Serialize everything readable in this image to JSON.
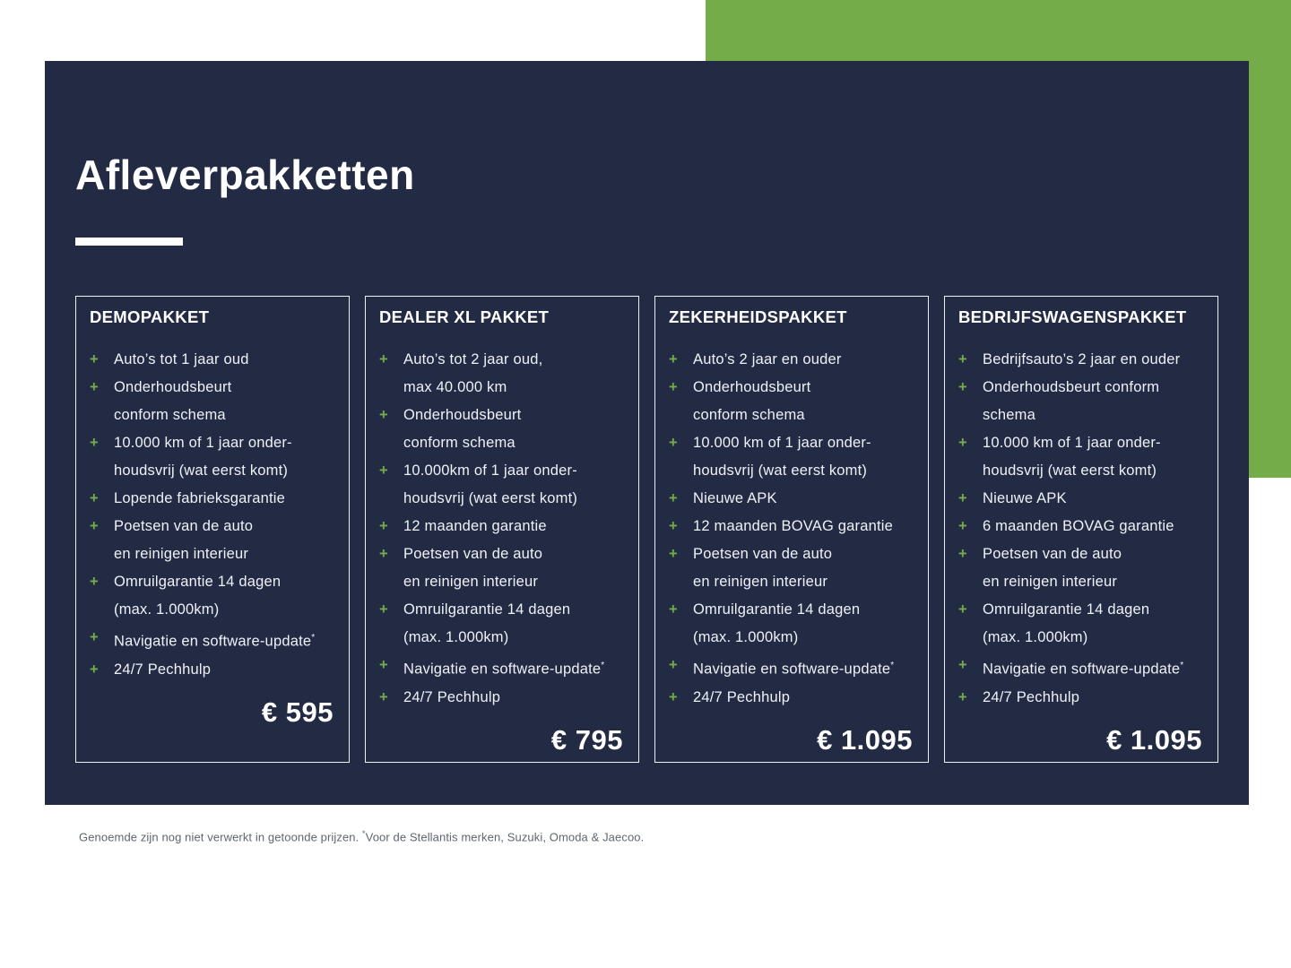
{
  "page": {
    "title": "Afleverpakketten",
    "bullet_glyph": "+",
    "footer": {
      "pre": "Genoemde zijn nog niet verwerkt in getoonde prijzen. ",
      "sup": "*",
      "post": "Voor de Stellantis merken, Suzuki, Omoda & Jaecoo."
    }
  },
  "colors": {
    "panel_navy": "#232A44",
    "accent_green": "#74AC4A",
    "card_border": "#EDF1F6",
    "list_text": "#EEF2F7",
    "footnote_text": "#5E6670"
  },
  "packages": [
    {
      "title": "DEMOPAKKET",
      "price": "€ 595",
      "items": [
        {
          "lines": [
            "Auto’s tot 1 jaar oud"
          ]
        },
        {
          "lines": [
            "Onderhoudsbeurt",
            "conform schema"
          ]
        },
        {
          "lines": [
            "10.000 km of 1 jaar onder-",
            "houdsvrij (wat eerst komt)"
          ]
        },
        {
          "lines": [
            "Lopende fabrieksgarantie"
          ]
        },
        {
          "lines": [
            "Poetsen van de auto",
            "en reinigen interieur"
          ]
        },
        {
          "lines": [
            "Omruilgarantie 14 dagen",
            "(max. 1.000km)"
          ]
        },
        {
          "lines": [
            "Navigatie en software-update"
          ],
          "sup": "*"
        },
        {
          "lines": [
            "24/7 Pechhulp"
          ]
        }
      ]
    },
    {
      "title": "DEALER XL PAKKET",
      "price": "€ 795",
      "items": [
        {
          "lines": [
            "Auto’s tot 2 jaar oud,",
            "max 40.000 km"
          ]
        },
        {
          "lines": [
            "Onderhoudsbeurt",
            "conform schema"
          ]
        },
        {
          "lines": [
            "10.000km of 1 jaar onder-",
            "houdsvrij (wat eerst komt)"
          ]
        },
        {
          "lines": [
            "12 maanden garantie"
          ]
        },
        {
          "lines": [
            "Poetsen van de auto",
            "en reinigen interieur"
          ]
        },
        {
          "lines": [
            "Omruilgarantie 14 dagen",
            "(max. 1.000km)"
          ]
        },
        {
          "lines": [
            "Navigatie en software-update"
          ],
          "sup": "*"
        },
        {
          "lines": [
            "24/7 Pechhulp"
          ]
        }
      ]
    },
    {
      "title": "ZEKERHEIDSPAKKET",
      "price": "€ 1.095",
      "items": [
        {
          "lines": [
            "Auto’s 2 jaar en ouder"
          ]
        },
        {
          "lines": [
            "Onderhoudsbeurt",
            "conform schema"
          ]
        },
        {
          "lines": [
            "10.000 km of 1 jaar onder-",
            "houdsvrij (wat eerst komt)"
          ]
        },
        {
          "lines": [
            "Nieuwe APK"
          ]
        },
        {
          "lines": [
            "12 maanden BOVAG garantie"
          ]
        },
        {
          "lines": [
            "Poetsen van de auto",
            "en reinigen interieur"
          ]
        },
        {
          "lines": [
            "Omruilgarantie 14 dagen",
            "(max. 1.000km)"
          ]
        },
        {
          "lines": [
            "Navigatie en software-update"
          ],
          "sup": "*"
        },
        {
          "lines": [
            "24/7 Pechhulp"
          ]
        }
      ]
    },
    {
      "title": "BEDRIJFSWAGENSPAKKET",
      "price": "€ 1.095",
      "items": [
        {
          "lines": [
            "Bedrijfsauto’s 2 jaar en ouder"
          ]
        },
        {
          "lines": [
            "Onderhoudsbeurt conform",
            "schema"
          ]
        },
        {
          "lines": [
            "10.000 km of 1 jaar onder-",
            "houdsvrij (wat eerst komt)"
          ]
        },
        {
          "lines": [
            "Nieuwe APK"
          ]
        },
        {
          "lines": [
            "6 maanden BOVAG garantie"
          ]
        },
        {
          "lines": [
            "Poetsen van de auto",
            "en reinigen interieur"
          ]
        },
        {
          "lines": [
            "Omruilgarantie 14 dagen",
            "(max. 1.000km)"
          ]
        },
        {
          "lines": [
            "Navigatie en software-update"
          ],
          "sup": "*"
        },
        {
          "lines": [
            "24/7 Pechhulp"
          ]
        }
      ]
    }
  ]
}
